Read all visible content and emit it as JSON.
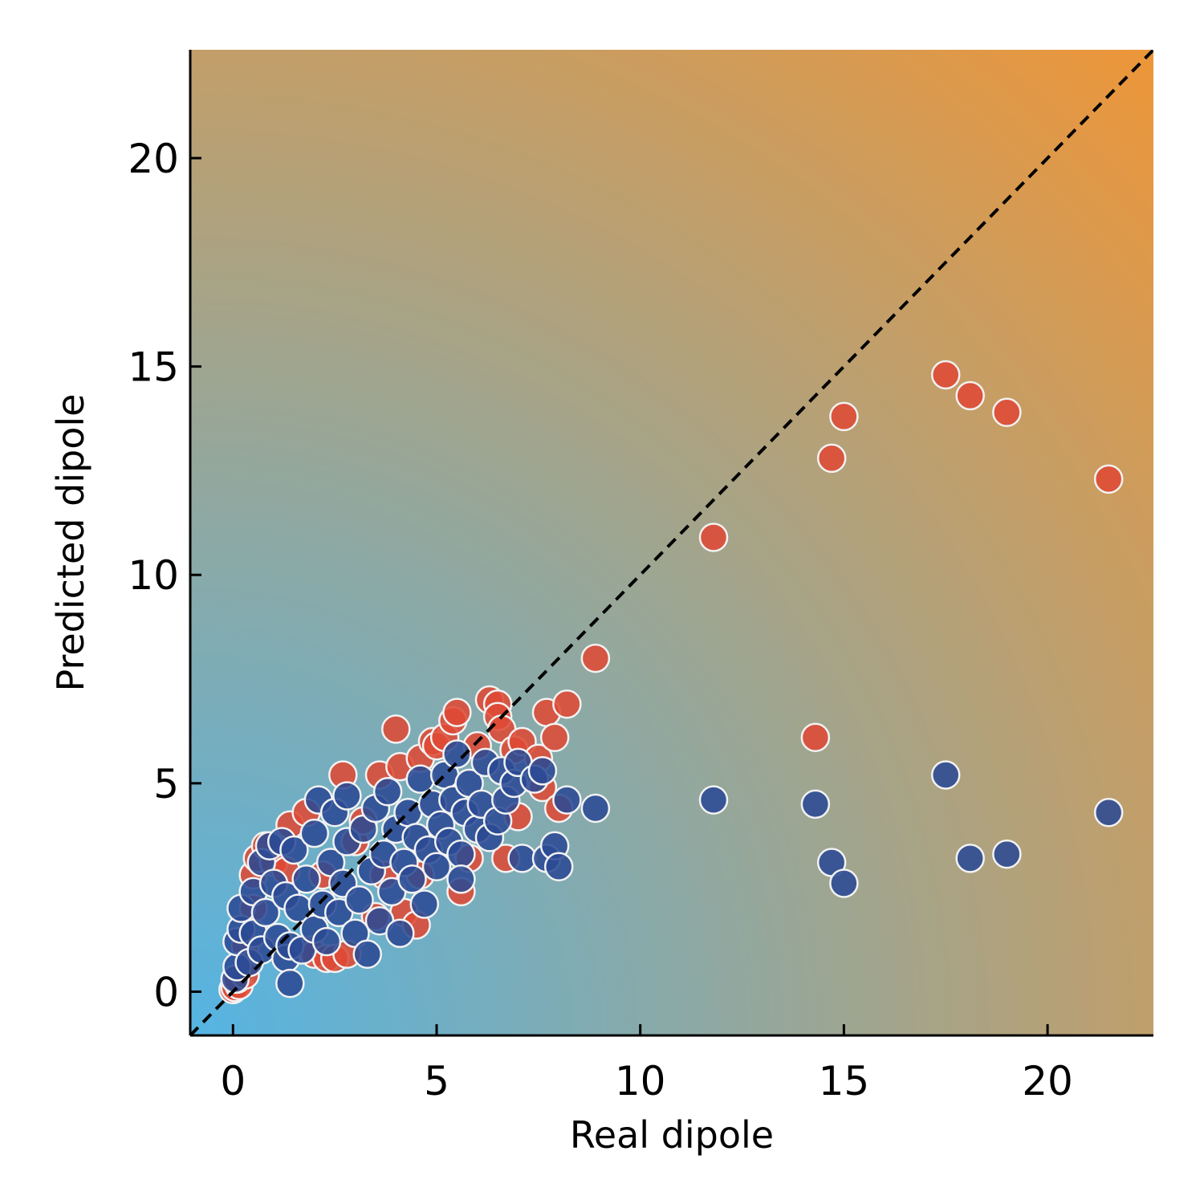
{
  "chart_data": {
    "type": "scatter",
    "title": "",
    "xlabel": "Real dipole",
    "ylabel": "Predicted dipole",
    "xlim": [
      -1.05,
      22.6
    ],
    "ylim": [
      -1.05,
      22.6
    ],
    "xticks": [
      0,
      5,
      10,
      15,
      20
    ],
    "yticks": [
      0,
      5,
      10,
      15,
      20
    ],
    "grid": false,
    "legend": "none",
    "reference_line": "y = x (dashed, black)",
    "background_gradient": {
      "low_corner_color": "#55b4e3",
      "high_corner_color": "#ec963a"
    },
    "series": [
      {
        "color": "#de4a35",
        "points": [
          [
            0.0,
            0.05
          ],
          [
            0.05,
            0.1
          ],
          [
            0.15,
            0.15
          ],
          [
            0.1,
            0.3
          ],
          [
            0.3,
            0.4
          ],
          [
            0.3,
            1.1
          ],
          [
            0.5,
            2.0
          ],
          [
            0.5,
            2.8
          ],
          [
            0.6,
            3.2
          ],
          [
            0.8,
            3.5
          ],
          [
            1.0,
            3.1
          ],
          [
            1.3,
            2.9
          ],
          [
            1.4,
            4.0
          ],
          [
            1.8,
            4.3
          ],
          [
            1.9,
            1.0
          ],
          [
            2.0,
            0.9
          ],
          [
            2.2,
            2.8
          ],
          [
            2.3,
            0.8
          ],
          [
            2.5,
            0.8
          ],
          [
            2.7,
            5.2
          ],
          [
            2.8,
            0.9
          ],
          [
            3.0,
            3.6
          ],
          [
            3.2,
            4.1
          ],
          [
            3.5,
            1.8
          ],
          [
            3.6,
            5.2
          ],
          [
            3.7,
            2.8
          ],
          [
            4.0,
            6.3
          ],
          [
            4.1,
            5.4
          ],
          [
            4.2,
            1.9
          ],
          [
            4.5,
            1.6
          ],
          [
            4.6,
            2.8
          ],
          [
            4.6,
            5.6
          ],
          [
            4.9,
            6.0
          ],
          [
            5.0,
            5.9
          ],
          [
            5.2,
            6.1
          ],
          [
            5.4,
            6.5
          ],
          [
            5.5,
            6.7
          ],
          [
            5.6,
            2.4
          ],
          [
            5.8,
            3.2
          ],
          [
            6.0,
            5.9
          ],
          [
            6.3,
            7.0
          ],
          [
            6.5,
            6.9
          ],
          [
            6.5,
            6.6
          ],
          [
            6.6,
            6.3
          ],
          [
            6.7,
            3.2
          ],
          [
            6.9,
            5.8
          ],
          [
            7.0,
            4.2
          ],
          [
            7.1,
            6.0
          ],
          [
            7.5,
            5.6
          ],
          [
            7.6,
            4.9
          ],
          [
            7.7,
            6.7
          ],
          [
            7.9,
            6.1
          ],
          [
            8.0,
            4.4
          ],
          [
            8.2,
            6.9
          ],
          [
            8.9,
            8.0
          ],
          [
            11.8,
            10.9
          ],
          [
            14.3,
            6.1
          ],
          [
            14.7,
            12.8
          ],
          [
            15.0,
            13.8
          ],
          [
            17.5,
            14.8
          ],
          [
            18.1,
            14.3
          ],
          [
            19.0,
            13.9
          ],
          [
            21.5,
            12.3
          ]
        ]
      },
      {
        "color": "#2b4a94",
        "points": [
          [
            0.05,
            0.3
          ],
          [
            0.1,
            0.6
          ],
          [
            0.1,
            1.2
          ],
          [
            0.2,
            1.5
          ],
          [
            0.2,
            2.0
          ],
          [
            0.4,
            0.7
          ],
          [
            0.5,
            1.4
          ],
          [
            0.5,
            2.4
          ],
          [
            0.7,
            1.0
          ],
          [
            0.7,
            3.1
          ],
          [
            0.8,
            1.9
          ],
          [
            0.9,
            3.5
          ],
          [
            1.0,
            2.6
          ],
          [
            1.1,
            1.3
          ],
          [
            1.2,
            3.6
          ],
          [
            1.3,
            0.8
          ],
          [
            1.3,
            2.3
          ],
          [
            1.4,
            0.2
          ],
          [
            1.4,
            1.1
          ],
          [
            1.5,
            3.4
          ],
          [
            1.6,
            2.0
          ],
          [
            1.7,
            1.0
          ],
          [
            1.8,
            2.7
          ],
          [
            2.0,
            1.5
          ],
          [
            2.0,
            3.8
          ],
          [
            2.1,
            4.6
          ],
          [
            2.2,
            2.1
          ],
          [
            2.3,
            1.2
          ],
          [
            2.4,
            3.1
          ],
          [
            2.5,
            4.3
          ],
          [
            2.6,
            1.9
          ],
          [
            2.7,
            2.6
          ],
          [
            2.8,
            3.6
          ],
          [
            2.8,
            4.7
          ],
          [
            3.0,
            1.4
          ],
          [
            3.1,
            2.2
          ],
          [
            3.2,
            3.9
          ],
          [
            3.3,
            0.9
          ],
          [
            3.4,
            2.9
          ],
          [
            3.5,
            4.4
          ],
          [
            3.6,
            1.7
          ],
          [
            3.7,
            3.3
          ],
          [
            3.8,
            4.8
          ],
          [
            3.9,
            2.4
          ],
          [
            4.0,
            3.9
          ],
          [
            4.1,
            1.4
          ],
          [
            4.2,
            3.1
          ],
          [
            4.3,
            4.3
          ],
          [
            4.4,
            2.7
          ],
          [
            4.5,
            3.7
          ],
          [
            4.6,
            5.1
          ],
          [
            4.7,
            2.1
          ],
          [
            4.8,
            3.4
          ],
          [
            4.9,
            4.5
          ],
          [
            5.0,
            3.0
          ],
          [
            5.1,
            4.0
          ],
          [
            5.2,
            5.2
          ],
          [
            5.3,
            3.6
          ],
          [
            5.4,
            4.6
          ],
          [
            5.5,
            5.7
          ],
          [
            5.6,
            3.3
          ],
          [
            5.6,
            2.7
          ],
          [
            5.7,
            4.3
          ],
          [
            5.8,
            5.0
          ],
          [
            6.0,
            3.9
          ],
          [
            6.1,
            4.5
          ],
          [
            6.2,
            5.5
          ],
          [
            6.3,
            3.7
          ],
          [
            6.5,
            4.1
          ],
          [
            6.6,
            5.3
          ],
          [
            6.7,
            4.6
          ],
          [
            6.9,
            5.0
          ],
          [
            7.0,
            5.5
          ],
          [
            7.1,
            3.2
          ],
          [
            7.4,
            5.1
          ],
          [
            7.6,
            5.3
          ],
          [
            7.7,
            3.2
          ],
          [
            7.9,
            3.5
          ],
          [
            8.0,
            3.0
          ],
          [
            8.2,
            4.6
          ],
          [
            8.9,
            4.4
          ],
          [
            11.8,
            4.6
          ],
          [
            14.3,
            4.5
          ],
          [
            14.7,
            3.1
          ],
          [
            15.0,
            2.6
          ],
          [
            17.5,
            5.2
          ],
          [
            18.1,
            3.2
          ],
          [
            19.0,
            3.3
          ],
          [
            21.5,
            4.3
          ]
        ]
      }
    ]
  }
}
